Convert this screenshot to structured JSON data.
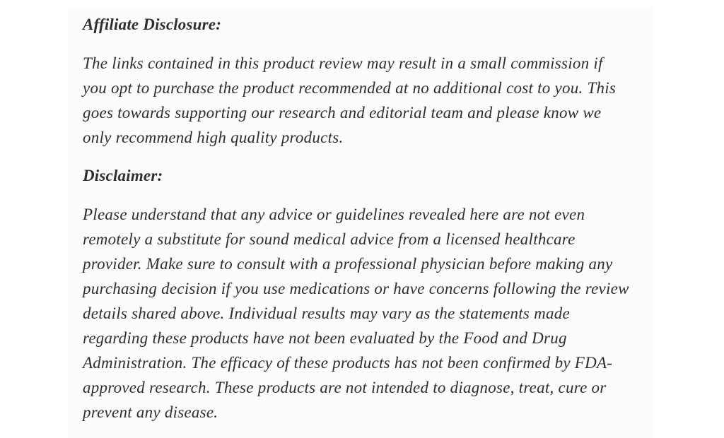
{
  "affiliate": {
    "heading": "Affiliate Disclosure:",
    "lines": [
      "The links contained in this product review may result in a small commission if",
      "you opt to purchase the product recommended at no additional cost to you. This",
      "goes towards supporting our research and editorial team and please know we",
      "only recommend high quality products."
    ]
  },
  "disclaimer": {
    "heading": "Disclaimer:",
    "lines": [
      "Please understand that any advice or guidelines revealed here are not even",
      "remotely a substitute for sound medical advice from a licensed healthcare",
      "provider. Make sure to consult with a professional physician before making any",
      "purchasing decision if you use medications or have concerns following the review",
      "details shared above. Individual results may vary as the statements made",
      "regarding these products have not been evaluated by the Food and Drug",
      "Administration. The efficacy of these products has not been confirmed by FDA-",
      "approved research. These products are not intended to diagnose, treat, cure or",
      "prevent any disease."
    ]
  }
}
